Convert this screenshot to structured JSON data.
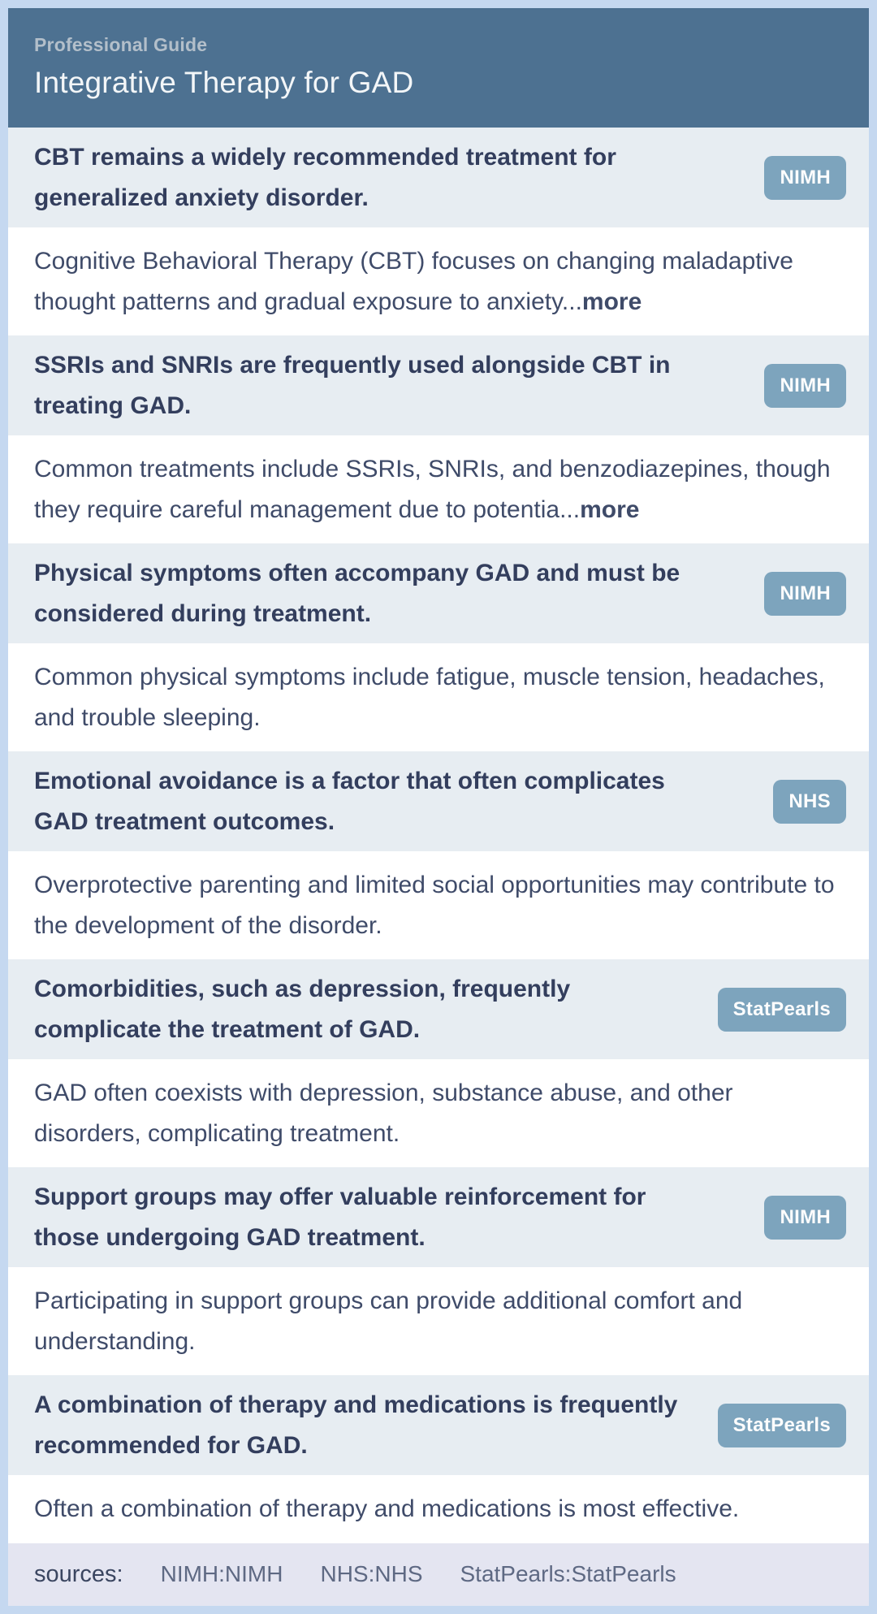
{
  "header": {
    "kicker": "Professional Guide",
    "title": "Integrative Therapy for GAD"
  },
  "items": [
    {
      "claim": "CBT remains a widely recommended treatment for generalized anxiety disorder.",
      "source": "NIMH",
      "explanation": "Cognitive Behavioral Therapy (CBT) focuses on changing maladaptive thought patterns and gradual exposure to anxiety...",
      "more_label": "more"
    },
    {
      "claim": "SSRIs and SNRIs are frequently used alongside CBT in treating GAD.",
      "source": "NIMH",
      "explanation": "Common treatments include SSRIs, SNRIs, and benzodiazepines, though they require careful management due to potentia...",
      "more_label": "more"
    },
    {
      "claim": "Physical symptoms often accompany GAD and must be considered during treatment.",
      "source": "NIMH",
      "explanation": "Common physical symptoms include fatigue, muscle tension, headaches, and trouble sleeping.",
      "more_label": ""
    },
    {
      "claim": "Emotional avoidance is a factor that often complicates GAD treatment outcomes.",
      "source": "NHS",
      "explanation": "Overprotective parenting and limited social opportunities may contribute to the development of the disorder.",
      "more_label": ""
    },
    {
      "claim": "Comorbidities, such as depression, frequently complicate the treatment of GAD.",
      "source": "StatPearls",
      "explanation": "GAD often coexists with depression, substance abuse, and other disorders, complicating treatment.",
      "more_label": ""
    },
    {
      "claim": "Support groups may offer valuable reinforcement for those undergoing GAD treatment.",
      "source": "NIMH",
      "explanation": "Participating in support groups can provide additional comfort and understanding.",
      "more_label": ""
    },
    {
      "claim": "A combination of therapy and medications is frequently recommended for GAD.",
      "source": "StatPearls",
      "explanation": "Often a combination of therapy and medications is most effective.",
      "more_label": ""
    }
  ],
  "footer": {
    "label": "sources:",
    "entries": [
      "NIMH:NIMH",
      "NHS:NHS",
      "StatPearls:StatPearls"
    ]
  },
  "colors": {
    "card_border": "#c5d8f0",
    "header_bg": "#4d7191",
    "kicker_text": "#b3bfca",
    "title_text": "#f3f6f8",
    "claim_row_bg": "#e7edf2",
    "claim_text": "#333e5d",
    "badge_bg": "#7da4bd",
    "badge_text": "#fdfdfd",
    "explanation_row_bg": "#ffffff",
    "explanation_text": "#3f4b69",
    "footer_bg": "#e4e5f1",
    "footer_label_text": "#3a4560",
    "footer_entry_text": "#5e6983"
  }
}
